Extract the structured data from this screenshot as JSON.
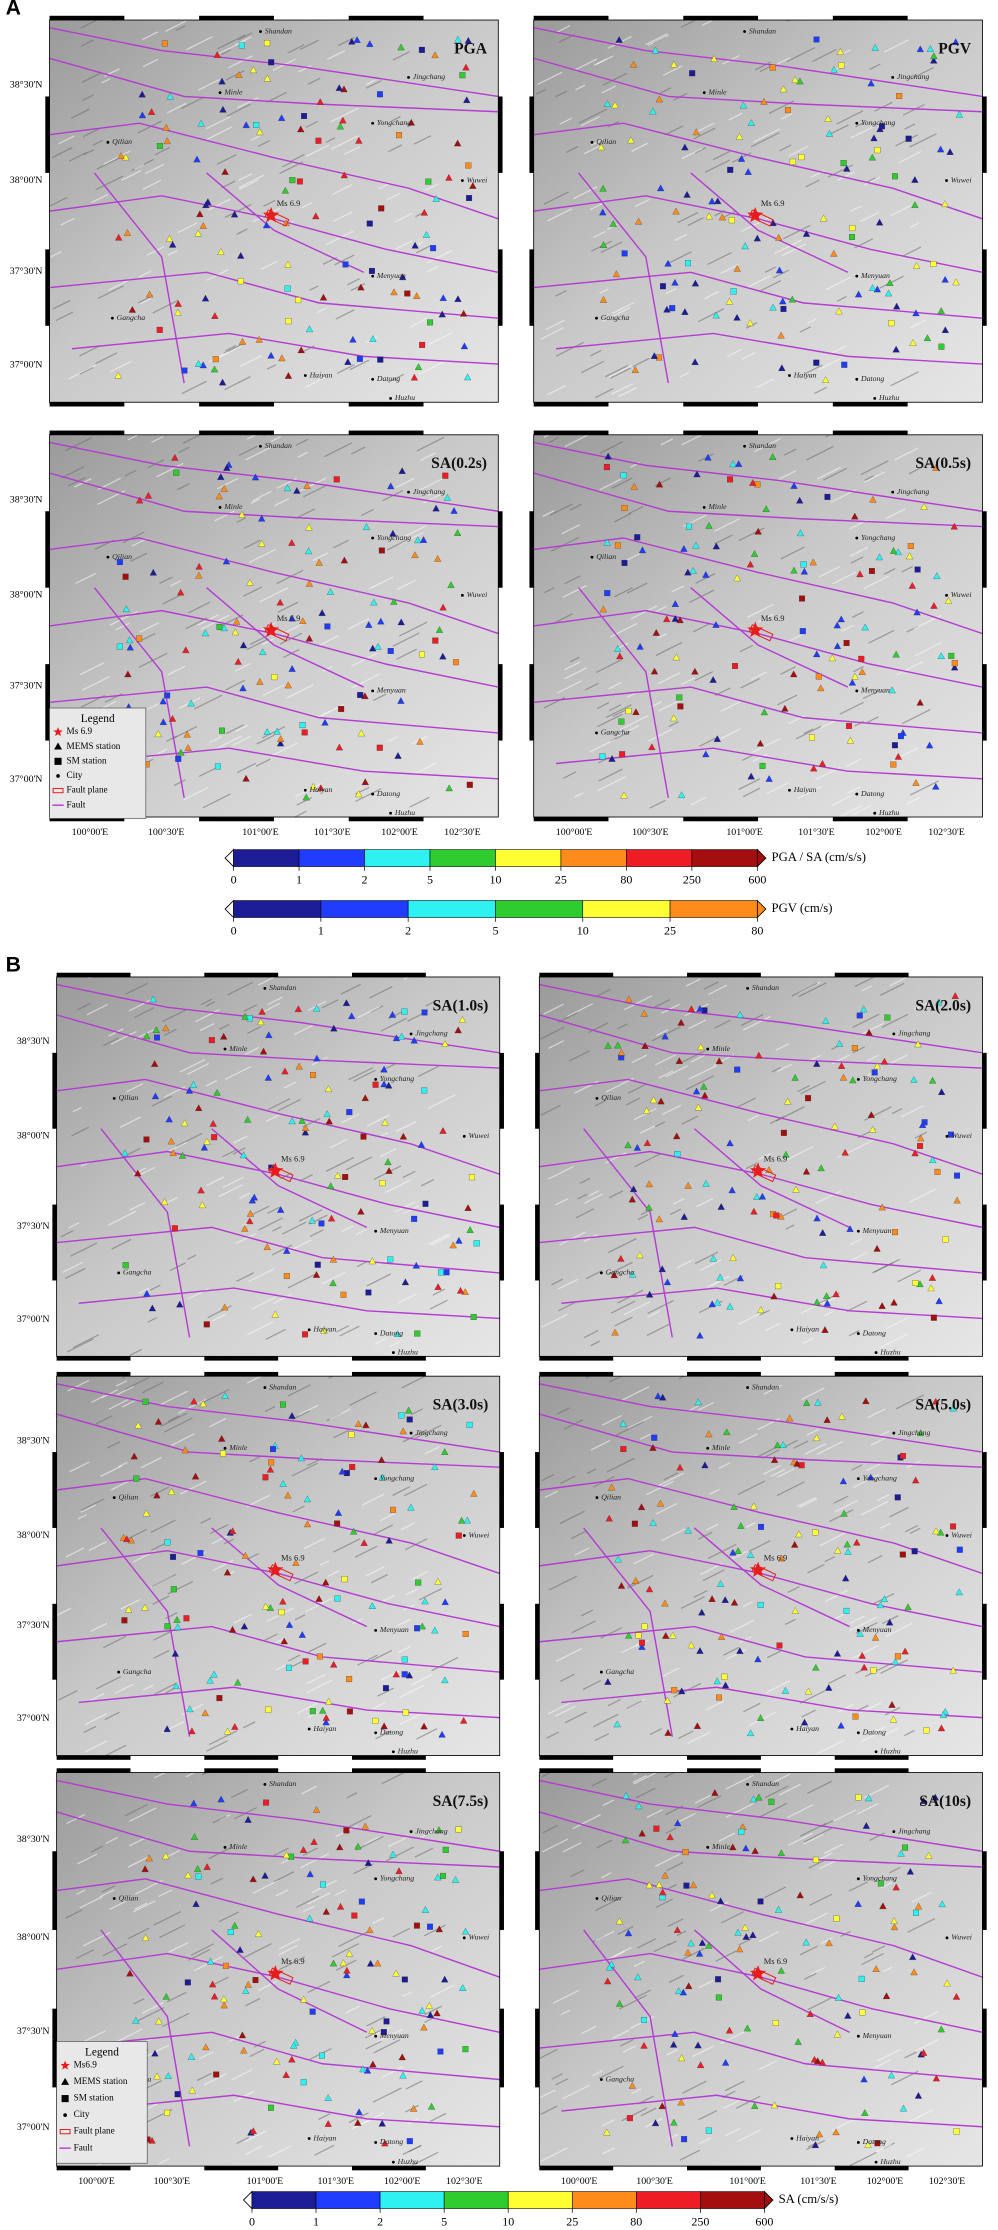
{
  "sections": [
    {
      "label": "A",
      "panels": [
        {
          "title": "PGA"
        },
        {
          "title": "PGV"
        },
        {
          "title": "SA(0.2s)"
        },
        {
          "title": "SA(0.5s)"
        }
      ],
      "legend": {
        "title": "Legend",
        "items": [
          "Ms 6.9",
          "MEMS station",
          "SM station",
          "City",
          "Fault plane",
          "Fault"
        ]
      },
      "colorbars": [
        {
          "unit": "PGA / SA  (cm/s/s)",
          "ticks": [
            0,
            1,
            2,
            5,
            10,
            25,
            80,
            250,
            600
          ],
          "colors": [
            "#1c1c96",
            "#1f3cff",
            "#2ef2f2",
            "#2fcc2f",
            "#ffff33",
            "#ff8c1a",
            "#ee1c25",
            "#a50e0e"
          ]
        },
        {
          "unit": "PGV  (cm/s)",
          "ticks": [
            0,
            1,
            2,
            5,
            10,
            25,
            80
          ],
          "colors": [
            "#1c1c96",
            "#1f3cff",
            "#2ef2f2",
            "#2fcc2f",
            "#ffff33",
            "#ff8c1a"
          ]
        }
      ]
    },
    {
      "label": "B",
      "panels": [
        {
          "title": "SA(1.0s)"
        },
        {
          "title": "SA(2.0s)"
        },
        {
          "title": "SA(3.0s)"
        },
        {
          "title": "SA(5.0s)"
        },
        {
          "title": "SA(7.5s)"
        },
        {
          "title": "SA(10s)"
        }
      ],
      "legend": {
        "title": "Legend",
        "items": [
          "Ms6.9",
          "MEMS station",
          "SM station",
          "City",
          "Fault plane",
          "Fault"
        ]
      },
      "colorbars": [
        {
          "unit": "SA (cm/s/s)",
          "ticks": [
            0,
            1,
            2,
            5,
            10,
            25,
            80,
            250,
            600
          ],
          "colors": [
            "#1c1c96",
            "#1f3cff",
            "#2ef2f2",
            "#2fcc2f",
            "#ffff33",
            "#ff8c1a",
            "#ee1c25",
            "#a50e0e"
          ]
        }
      ]
    }
  ],
  "map": {
    "lat_labels": [
      "38°30'N",
      "38°00'N",
      "37°30'N",
      "37°00'N"
    ],
    "lon_labels": [
      "100°00'E",
      "100°30'E",
      "101°00'E",
      "101°30'E",
      "102°00'E",
      "102°30'E"
    ],
    "cities": [
      {
        "name": "Shandan"
      },
      {
        "name": "Jingchang"
      },
      {
        "name": "Minle"
      },
      {
        "name": "Yongchang"
      },
      {
        "name": "Qilian"
      },
      {
        "name": "Wuwei"
      },
      {
        "name": "Ms 6.9"
      },
      {
        "name": "Menyuan"
      },
      {
        "name": "Gangcha"
      },
      {
        "name": "Haiyan"
      },
      {
        "name": "Datong"
      },
      {
        "name": "Huzhu"
      }
    ]
  }
}
